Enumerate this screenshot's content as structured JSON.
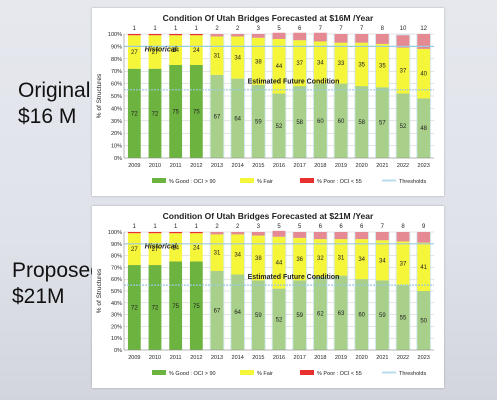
{
  "slide": {
    "label_top_line1": "Original",
    "label_top_line2": "$16 M",
    "label_bottom_line1": "Proposed",
    "label_bottom_line2": "$21M"
  },
  "colors": {
    "good_historical": "#6db33f",
    "good_future": "#a8d08a",
    "fair": "#f5f53a",
    "poor": "#e8312f",
    "poor_future": "#e58a93",
    "threshold": "#b8dcec",
    "grid": "#c8c8c8"
  },
  "chart_data": [
    {
      "type": "bar",
      "stacked": true,
      "title": "Condition Of Utah Bridges Forecasted at $16M /Year",
      "ylabel": "% of Structures",
      "xlabel": "",
      "ylim": [
        0,
        100
      ],
      "yticks": [
        "0%",
        "10%",
        "20%",
        "30%",
        "40%",
        "50%",
        "60%",
        "70%",
        "80%",
        "90%",
        "100%"
      ],
      "grid": true,
      "legend_position": "bottom",
      "legend": [
        "% Good : OCI > 90",
        "% Fair",
        "% Poor : OCI < 55",
        "Thresholds"
      ],
      "annotations": [
        "Historical",
        "Estimated Future Condition"
      ],
      "categories": [
        "2009",
        "2010",
        "2011",
        "2012",
        "2013",
        "2014",
        "2015",
        "2016",
        "2017",
        "2018",
        "2019",
        "2020",
        "2021",
        "2022",
        "2023"
      ],
      "series": [
        {
          "name": "% Good : OCI > 90",
          "values": [
            72,
            72,
            75,
            75,
            67,
            64,
            59,
            52,
            58,
            60,
            60,
            58,
            57,
            52,
            48
          ]
        },
        {
          "name": "% Fair",
          "values": [
            27,
            27,
            24,
            24,
            31,
            34,
            38,
            44,
            37,
            34,
            33,
            35,
            35,
            37,
            40
          ]
        },
        {
          "name": "% Poor : OCI < 55",
          "values": [
            1,
            1,
            1,
            1,
            2,
            2,
            3,
            5,
            6,
            7,
            7,
            7,
            8,
            10,
            12
          ]
        }
      ],
      "historical_count": 4
    },
    {
      "type": "bar",
      "stacked": true,
      "title": "Condition Of Utah Bridges Forecasted at $21M /Year",
      "ylabel": "% of Structures",
      "xlabel": "",
      "ylim": [
        0,
        100
      ],
      "yticks": [
        "0%",
        "10%",
        "20%",
        "30%",
        "40%",
        "50%",
        "60%",
        "70%",
        "80%",
        "90%",
        "100%"
      ],
      "grid": true,
      "legend_position": "bottom",
      "legend": [
        "% Good : OCI > 90",
        "% Fair",
        "% Poor : OCI < 55",
        "Thresholds"
      ],
      "annotations": [
        "Historical",
        "Estimated Future Condition"
      ],
      "categories": [
        "2009",
        "2010",
        "2011",
        "2012",
        "2013",
        "2014",
        "2015",
        "2016",
        "2017",
        "2018",
        "2019",
        "2020",
        "2021",
        "2022",
        "2023"
      ],
      "series": [
        {
          "name": "% Good : OCI > 90",
          "values": [
            72,
            72,
            75,
            75,
            67,
            64,
            59,
            52,
            59,
            62,
            63,
            60,
            59,
            55,
            50
          ]
        },
        {
          "name": "% Fair",
          "values": [
            27,
            27,
            24,
            24,
            31,
            34,
            38,
            44,
            36,
            32,
            31,
            34,
            34,
            37,
            41
          ]
        },
        {
          "name": "% Poor : OCI < 55",
          "values": [
            1,
            1,
            1,
            1,
            2,
            2,
            3,
            5,
            5,
            6,
            6,
            6,
            7,
            8,
            9
          ]
        }
      ],
      "historical_count": 4
    }
  ]
}
